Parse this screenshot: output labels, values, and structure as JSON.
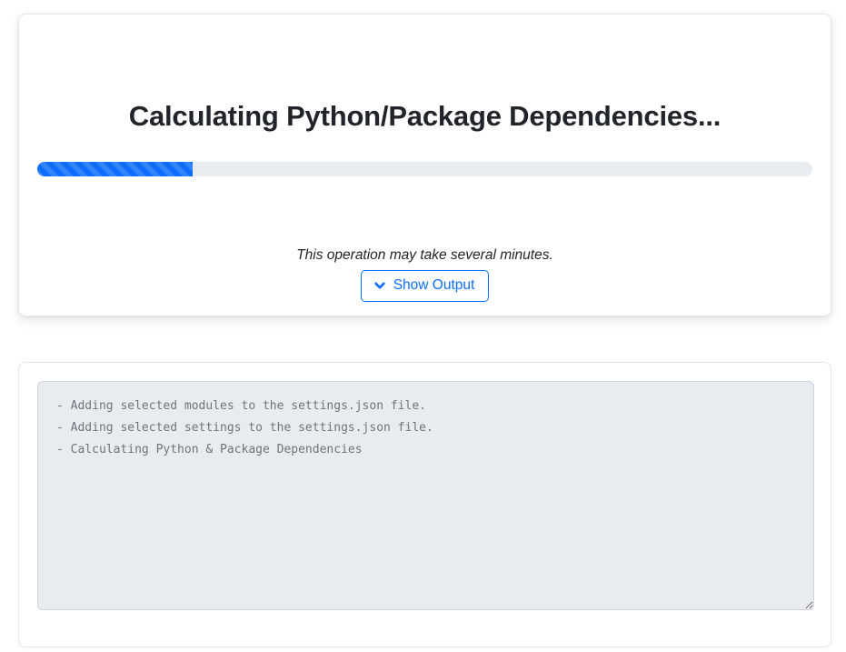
{
  "colors": {
    "accent_blue": "#0d6efd",
    "progress_track": "#e9ecef",
    "output_background": "#e9ecef",
    "output_text": "#6c757d",
    "title_text": "#212529"
  },
  "progress_card": {
    "title": "Calculating Python/Package Dependencies...",
    "progress_percent": 20,
    "note": "This operation may take several minutes.",
    "show_output_button": {
      "label": "Show Output",
      "icon": "chevron-down-icon"
    }
  },
  "output_card": {
    "log_lines": [
      "- Adding selected modules to the settings.json file.",
      "- Adding selected settings to the settings.json file.",
      "- Calculating Python & Package Dependencies"
    ]
  }
}
